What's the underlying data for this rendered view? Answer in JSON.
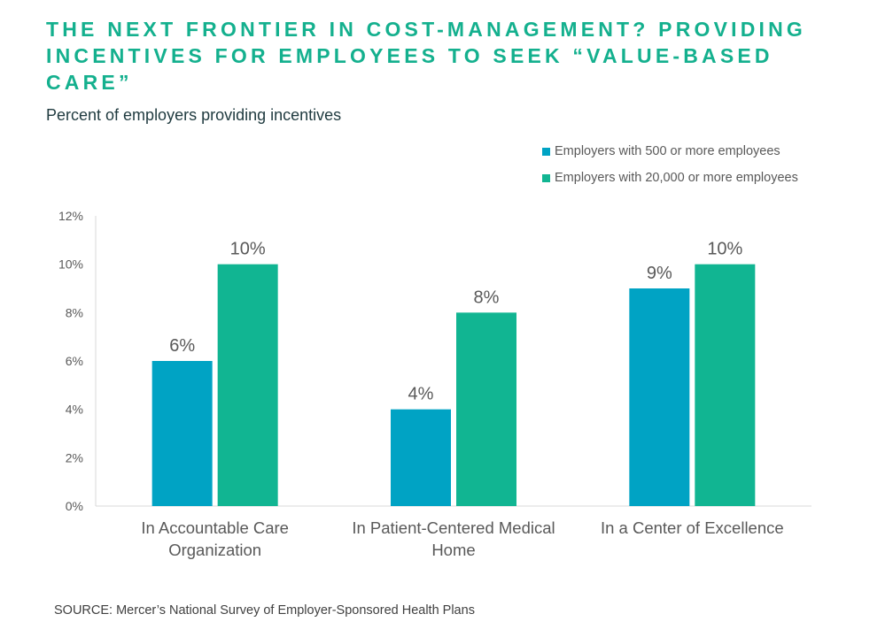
{
  "title": "The next frontier in cost-management? Providing incentives for employees to seek “value-based care”",
  "subtitle": "Percent of employers providing incentives",
  "source": "SOURCE:  Mercer’s National Survey of Employer-Sponsored Health Plans",
  "colors": {
    "title": "#14b08e",
    "series_a": "#00a3c4",
    "series_b": "#11b592"
  },
  "chart_data": {
    "type": "bar",
    "title": "",
    "xlabel": "",
    "ylabel": "",
    "ylim": [
      0,
      12
    ],
    "yticks": [
      {
        "value": 0,
        "label": "0%"
      },
      {
        "value": 2,
        "label": "2%"
      },
      {
        "value": 4,
        "label": "4%"
      },
      {
        "value": 6,
        "label": "6%"
      },
      {
        "value": 8,
        "label": "8%"
      },
      {
        "value": 10,
        "label": "10%"
      },
      {
        "value": 12,
        "label": "12%"
      }
    ],
    "categories": [
      [
        "In Accountable Care",
        "Organization"
      ],
      [
        "In Patient-Centered Medical",
        "Home"
      ],
      [
        "In a Center of Excellence"
      ]
    ],
    "series": [
      {
        "name": "Employers with 500 or more employees",
        "values": [
          6,
          4,
          9
        ],
        "labels": [
          "6%",
          "4%",
          "9%"
        ],
        "color": "#00a3c4"
      },
      {
        "name": "Employers with 20,000 or more  employees",
        "values": [
          10,
          8,
          10
        ],
        "labels": [
          "10%",
          "8%",
          "10%"
        ],
        "color": "#11b592"
      }
    ],
    "grid": false,
    "legend_position": "top-right"
  }
}
